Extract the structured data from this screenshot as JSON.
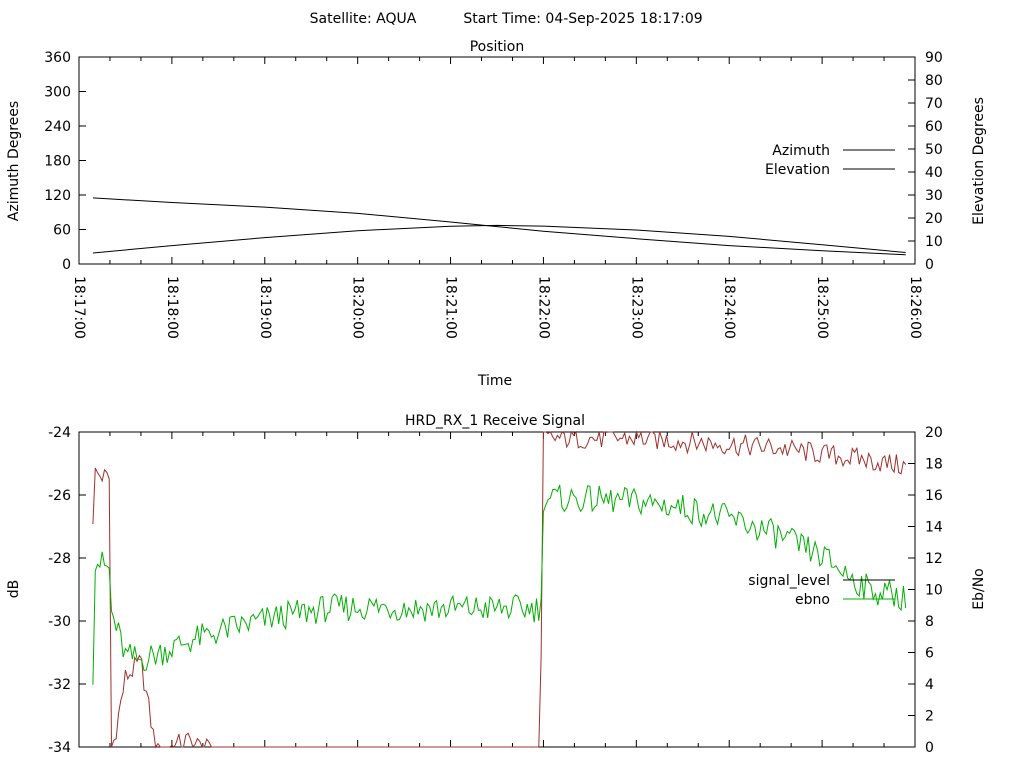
{
  "header": {
    "satellite": "Satellite: AQUA",
    "start_time": "Start Time: 04-Sep-2025 18:17:09"
  },
  "colors": {
    "azimuth": "#a0302c",
    "elevation": "#3a6fa8",
    "signal_level": "#a0302c",
    "signal_level_upper": "#3a6fa8",
    "ebno": "#00b000"
  },
  "chart_data": [
    {
      "type": "line",
      "title": "Position",
      "xlabel": "Time",
      "ylabel": "Azimuth Degrees",
      "y2label": "Elevation Degrees",
      "x_ticks": [
        "18:17:00",
        "18:18:00",
        "18:19:00",
        "18:20:00",
        "18:21:00",
        "18:22:00",
        "18:23:00",
        "18:24:00",
        "18:25:00",
        "18:26:00"
      ],
      "xlim": [
        "18:17:00",
        "18:26:00"
      ],
      "ylim": [
        0,
        360
      ],
      "y_ticks": [
        0,
        60,
        120,
        180,
        240,
        300,
        360
      ],
      "y2lim": [
        0,
        90
      ],
      "y2_ticks": [
        0,
        10,
        20,
        30,
        40,
        50,
        60,
        70,
        80,
        90
      ],
      "legend": "right",
      "series": [
        {
          "name": "Azimuth",
          "axis": "y",
          "x": [
            "18:17:09",
            "18:18:00",
            "18:19:00",
            "18:20:00",
            "18:21:00",
            "18:21:30",
            "18:22:00",
            "18:23:00",
            "18:24:00",
            "18:25:00",
            "18:25:54"
          ],
          "values": [
            115,
            107,
            99,
            88,
            73,
            65,
            57,
            44,
            32,
            23,
            16
          ]
        },
        {
          "name": "Elevation",
          "axis": "y2",
          "x": [
            "18:17:09",
            "18:18:00",
            "18:19:00",
            "18:20:00",
            "18:21:00",
            "18:21:30",
            "18:22:00",
            "18:23:00",
            "18:24:00",
            "18:25:00",
            "18:25:54"
          ],
          "values": [
            4.8,
            8,
            11.5,
            14.5,
            16.4,
            16.8,
            16.5,
            14.8,
            12,
            8.4,
            5
          ]
        }
      ]
    },
    {
      "type": "line",
      "title": "HRD_RX_1 Receive Signal",
      "ylabel": "dB",
      "y2label": "Eb/No",
      "xlim": [
        "18:17:00",
        "18:26:00"
      ],
      "ylim": [
        -34,
        -24
      ],
      "y_ticks": [
        -34,
        -32,
        -30,
        -28,
        -26,
        -24
      ],
      "y2lim": [
        0,
        20
      ],
      "y2_ticks": [
        0,
        2,
        4,
        6,
        8,
        10,
        12,
        14,
        16,
        18,
        20
      ],
      "legend": "right",
      "series": [
        {
          "name": "signal_level",
          "axis": "y",
          "x": [
            "18:17:09",
            "18:17:10",
            "18:17:20",
            "18:17:21",
            "18:17:30",
            "18:17:40",
            "18:17:50",
            "18:18:10",
            "18:18:40",
            "18:19:10",
            "18:19:40",
            "18:20:10",
            "18:20:40",
            "18:21:10",
            "18:21:40",
            "18:21:58",
            "18:21:59",
            "18:22:00",
            "18:22:30",
            "18:23:00",
            "18:23:30",
            "18:24:00",
            "18:24:30",
            "18:25:00",
            "18:25:30",
            "18:25:54"
          ],
          "values": [
            -26.7,
            -25.3,
            -25.5,
            -34.2,
            -31.8,
            -31.3,
            -34.2,
            -33.8,
            -34.5,
            -34.5,
            -34.5,
            -34.5,
            -34.5,
            -34.5,
            -34.5,
            -34.5,
            -27.8,
            -24.2,
            -24.2,
            -24.2,
            -24.3,
            -24.4,
            -24.5,
            -24.7,
            -24.9,
            -25.1
          ]
        },
        {
          "name": "ebno",
          "axis": "y2",
          "x": [
            "18:17:09",
            "18:17:10",
            "18:17:20",
            "18:17:21",
            "18:17:30",
            "18:17:40",
            "18:17:50",
            "18:18:10",
            "18:18:40",
            "18:19:10",
            "18:19:40",
            "18:20:10",
            "18:20:40",
            "18:21:10",
            "18:21:40",
            "18:21:58",
            "18:21:59",
            "18:22:00",
            "18:22:30",
            "18:23:00",
            "18:23:30",
            "18:24:00",
            "18:24:30",
            "18:25:00",
            "18:25:30",
            "18:25:54"
          ],
          "values": [
            4.8,
            12,
            11.2,
            8.5,
            5.8,
            5.5,
            5.9,
            6.7,
            7.6,
            8.3,
            8.8,
            8.9,
            8.8,
            8.8,
            8.8,
            8.8,
            10,
            15.8,
            15.7,
            15.6,
            15.2,
            14.5,
            13.5,
            12.1,
            10,
            9.5
          ]
        }
      ]
    }
  ]
}
